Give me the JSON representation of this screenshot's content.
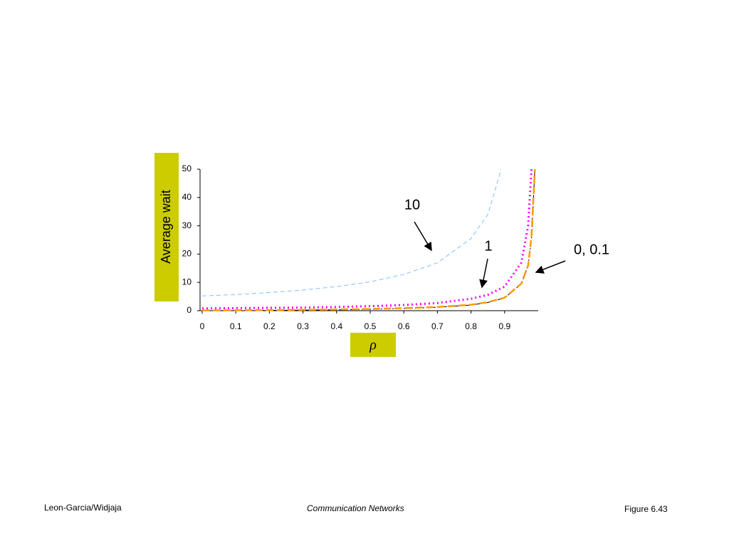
{
  "chart_data": {
    "type": "line",
    "y_label": "Average wait",
    "x_label": "ρ",
    "xlim": [
      0,
      1
    ],
    "xticks": [
      0,
      0.1,
      0.2,
      0.3,
      0.4,
      0.5,
      0.6,
      0.7,
      0.8,
      0.9
    ],
    "ylim": [
      0,
      50
    ],
    "yticks": [
      0,
      10,
      20,
      30,
      40,
      50
    ],
    "series": [
      {
        "color": "#7fbfff",
        "x": [
          0,
          0.1,
          0.2,
          0.3,
          0.4,
          0.5,
          0.6,
          0.7,
          0.8,
          0.85,
          0.89
        ],
        "values": [
          5.2,
          5.7,
          6.4,
          7.3,
          8.5,
          10.2,
          12.8,
          16.9,
          25.5,
          34,
          50
        ]
      },
      {
        "color": "#ff00ff",
        "x": [
          0,
          0.1,
          0.2,
          0.3,
          0.4,
          0.5,
          0.6,
          0.7,
          0.8,
          0.85,
          0.9,
          0.95,
          0.97,
          0.98
        ],
        "values": [
          0.8,
          0.9,
          1.0,
          1.1,
          1.3,
          1.6,
          2.0,
          2.7,
          4.2,
          5.6,
          8.5,
          17,
          30,
          50
        ]
      },
      {
        "color": "#000000",
        "x": [
          0,
          0.1,
          0.2,
          0.3,
          0.4,
          0.5,
          0.6,
          0.7,
          0.8,
          0.85,
          0.9,
          0.95,
          0.97,
          0.98,
          0.99
        ],
        "values": [
          0,
          0.05,
          0.1,
          0.2,
          0.3,
          0.5,
          0.8,
          1.2,
          2,
          2.9,
          4.5,
          9.5,
          16,
          25,
          50
        ]
      },
      {
        "color": "#ff9900",
        "x": [
          0,
          0.1,
          0.2,
          0.3,
          0.4,
          0.5,
          0.6,
          0.7,
          0.8,
          0.85,
          0.9,
          0.95,
          0.97,
          0.98,
          0.99
        ],
        "values": [
          0.1,
          0.15,
          0.2,
          0.3,
          0.4,
          0.6,
          0.9,
          1.3,
          2.1,
          3.0,
          4.6,
          9.6,
          16,
          26,
          50
        ]
      }
    ],
    "annotations": [
      "10",
      "1",
      "0, 0.1"
    ]
  },
  "footer": {
    "left": "Leon-Garcia/Widjaja",
    "center": "Communication Networks",
    "right": "Figure 6.43"
  }
}
